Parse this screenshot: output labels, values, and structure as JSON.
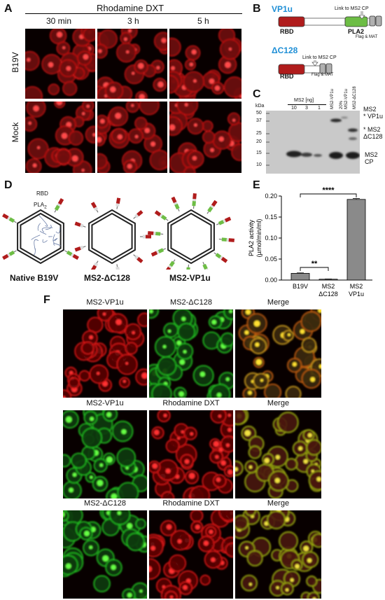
{
  "panel_a": {
    "label": "A",
    "header": "Rhodamine DXT",
    "columns": [
      "30 min",
      "3 h",
      "5 h"
    ],
    "rows": [
      "B19V",
      "Mock"
    ]
  },
  "panel_b": {
    "label": "B",
    "construct1": {
      "name": "VP1u",
      "rbd": "RBD",
      "pla2": "PLA2",
      "link": "Link to MS2 CP",
      "tag": "Flag & MAT"
    },
    "construct2": {
      "name": "ΔC128",
      "rbd": "RBD",
      "link": "Link to MS2 CP",
      "tag": "Flag & MAT"
    },
    "colors": {
      "blue": "#1f8fd6",
      "rbd": "#b01c1c",
      "pla2": "#6dbd45",
      "tag": "#b0b0b0"
    }
  },
  "panel_c": {
    "label": "C",
    "kda": "kDa",
    "ms2_header": "MS2 [ng]",
    "ms2_lanes": [
      "10",
      "3",
      "1"
    ],
    "sample_lanes": [
      "MS2-VP1u",
      "20%",
      "MS2-VP1u",
      "MS2-ΔC128"
    ],
    "markers": [
      "50",
      "37",
      "25",
      "20",
      "15",
      "10"
    ],
    "band_labels": [
      "MS2 VP1u",
      "MS2 ΔC128",
      "MS2 CP"
    ],
    "band_label_lines": [
      [
        "MS2",
        "VP1u"
      ],
      [
        "MS2",
        "ΔC128"
      ],
      [
        "MS2",
        "CP"
      ]
    ],
    "star": "*"
  },
  "panel_d": {
    "label": "D",
    "rbd": "RBD",
    "pla2": "PLA",
    "pla2_sub": "2",
    "captions": [
      "Native B19V",
      "MS2-ΔC128",
      "MS2-VP1u"
    ]
  },
  "panel_e": {
    "label": "E",
    "chart_data": {
      "type": "bar",
      "categories": [
        "B19V",
        "MS2 ΔC128",
        "MS2 VP1u"
      ],
      "category_lines": [
        [
          "B19V"
        ],
        [
          "MS2",
          "ΔC128"
        ],
        [
          "MS2",
          "VP1u"
        ]
      ],
      "values": [
        0.016,
        0.002,
        0.192
      ],
      "errors": [
        0.001,
        0.0005,
        0.002
      ],
      "ylabel": "PLA2 activity",
      "ylabel2": "(µmol/min/ml)",
      "ylim": [
        0,
        0.2
      ],
      "yticks": [
        "0.00",
        "0.05",
        "0.10",
        "0.15",
        "0.20"
      ],
      "yticks_values": [
        0,
        0.05,
        0.1,
        0.15,
        0.2
      ],
      "significance": [
        {
          "from": 0,
          "to": 1,
          "label": "**"
        },
        {
          "from": 0,
          "to": 2,
          "label": "****"
        }
      ],
      "bar_color": "#8a8a8a"
    }
  },
  "panel_f": {
    "label": "F",
    "rows": [
      [
        "MS2-VP1u",
        "MS2-ΔC128",
        "Merge"
      ],
      [
        "MS2-VP1u",
        "Rhodamine DXT",
        "Merge"
      ],
      [
        "MS2-ΔC128",
        "Rhodamine DXT",
        "Merge"
      ]
    ]
  }
}
